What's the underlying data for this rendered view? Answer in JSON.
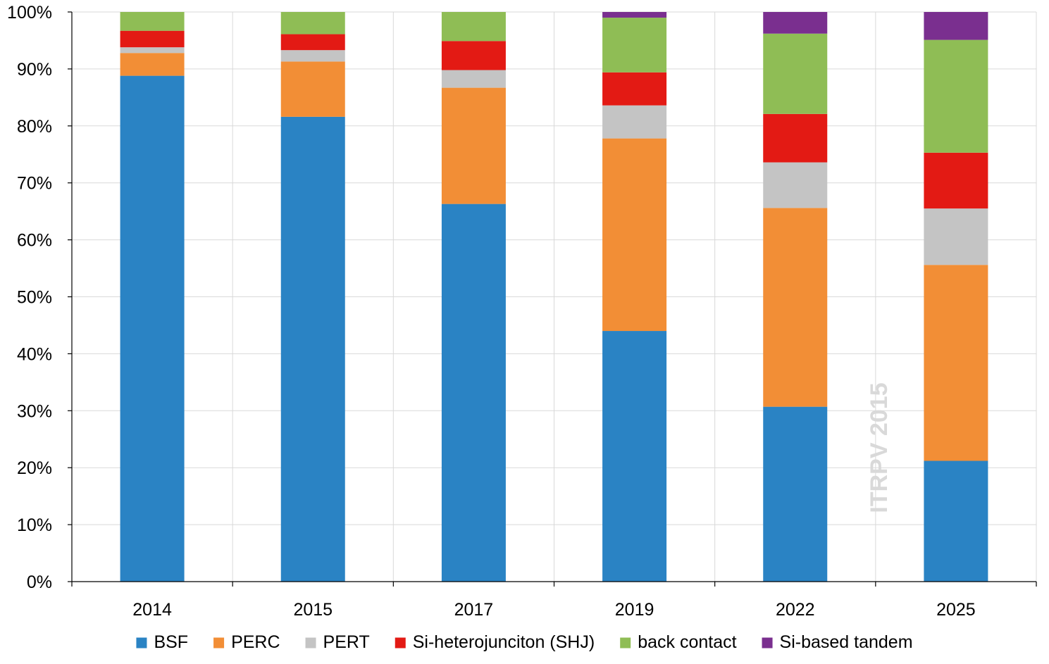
{
  "chart_data": {
    "type": "bar",
    "stacked": true,
    "percent": true,
    "categories": [
      "2014",
      "2015",
      "2017",
      "2019",
      "2022",
      "2025"
    ],
    "series": [
      {
        "name": "BSF",
        "color": "#2A83C4",
        "values": [
          88.8,
          81.6,
          66.3,
          44.0,
          30.7,
          21.2
        ]
      },
      {
        "name": "PERC",
        "color": "#F28E36",
        "values": [
          4.0,
          9.7,
          20.4,
          33.8,
          34.9,
          34.4
        ]
      },
      {
        "name": "PERT",
        "color": "#C4C4C4",
        "values": [
          1.0,
          2.0,
          3.1,
          5.8,
          8.0,
          9.9
        ]
      },
      {
        "name": "Si-heterojunciton (SHJ)",
        "color": "#E31A14",
        "values": [
          2.9,
          2.8,
          5.1,
          5.8,
          8.5,
          9.8
        ]
      },
      {
        "name": "back contact",
        "color": "#8FBD55",
        "values": [
          3.3,
          3.9,
          5.1,
          9.6,
          14.1,
          19.8
        ]
      },
      {
        "name": "Si-based tandem",
        "color": "#7A2F8F",
        "values": [
          0.0,
          0.0,
          0.0,
          1.0,
          3.8,
          4.9
        ]
      }
    ],
    "ylim": [
      0,
      100
    ],
    "yticks": [
      "0%",
      "10%",
      "20%",
      "30%",
      "40%",
      "50%",
      "60%",
      "70%",
      "80%",
      "90%",
      "100%"
    ],
    "grid": true,
    "legend_position": "bottom",
    "watermark": "ITRPV 2015",
    "xlabel": "",
    "ylabel": "",
    "title": ""
  }
}
